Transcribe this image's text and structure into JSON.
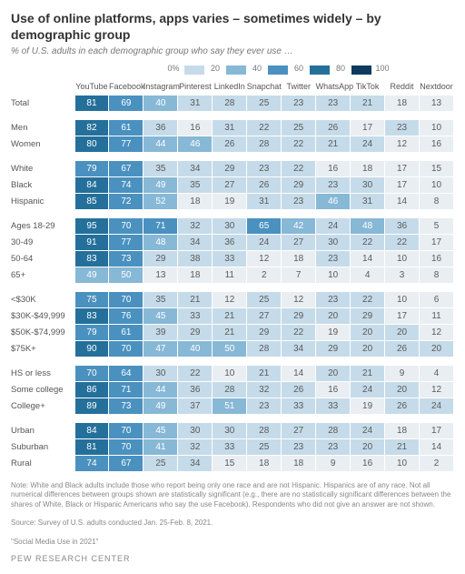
{
  "title": "Use of online platforms, apps varies – sometimes widely – by demographic group",
  "subtitle": "% of U.S. adults in each demographic group who say they ever use …",
  "legend": {
    "ticks": [
      "0%",
      "20",
      "40",
      "60",
      "80",
      "100"
    ],
    "colors": [
      "#e9eef2",
      "#c5dbe9",
      "#87b8d6",
      "#4a91c0",
      "#24709b",
      "#0f3a5f"
    ]
  },
  "color_scale": {
    "breaks": [
      0,
      20,
      40,
      60,
      80,
      101
    ],
    "colors": [
      "#e9eef2",
      "#c5dbe9",
      "#87b8d6",
      "#4a91c0",
      "#24709b",
      "#0f3a5f"
    ],
    "text_light": "#ffffff",
    "text_dark": "#5a5a5a"
  },
  "platforms": [
    "YouTube",
    "Facebook",
    "Instagram",
    "Pinterest",
    "LinkedIn",
    "Snapchat",
    "Twitter",
    "WhatsApp",
    "TikTok",
    "Reddit",
    "Nextdoor"
  ],
  "groups": [
    {
      "rows": [
        {
          "label": "Total",
          "vals": [
            81,
            69,
            40,
            31,
            28,
            25,
            23,
            23,
            21,
            18,
            13
          ]
        }
      ]
    },
    {
      "rows": [
        {
          "label": "Men",
          "vals": [
            82,
            61,
            36,
            16,
            31,
            22,
            25,
            26,
            17,
            23,
            10
          ]
        },
        {
          "label": "Women",
          "vals": [
            80,
            77,
            44,
            46,
            26,
            28,
            22,
            21,
            24,
            12,
            16
          ]
        }
      ]
    },
    {
      "rows": [
        {
          "label": "White",
          "vals": [
            79,
            67,
            35,
            34,
            29,
            23,
            22,
            16,
            18,
            17,
            15
          ]
        },
        {
          "label": "Black",
          "vals": [
            84,
            74,
            49,
            35,
            27,
            26,
            29,
            23,
            30,
            17,
            10
          ]
        },
        {
          "label": "Hispanic",
          "vals": [
            85,
            72,
            52,
            18,
            19,
            31,
            23,
            46,
            31,
            14,
            8
          ]
        }
      ]
    },
    {
      "rows": [
        {
          "label": "Ages 18-29",
          "vals": [
            95,
            70,
            71,
            32,
            30,
            65,
            42,
            24,
            48,
            36,
            5
          ]
        },
        {
          "label": "30-49",
          "vals": [
            91,
            77,
            48,
            34,
            36,
            24,
            27,
            30,
            22,
            22,
            17
          ]
        },
        {
          "label": "50-64",
          "vals": [
            83,
            73,
            29,
            38,
            33,
            12,
            18,
            23,
            14,
            10,
            16
          ]
        },
        {
          "label": "65+",
          "vals": [
            49,
            50,
            13,
            18,
            11,
            2,
            7,
            10,
            4,
            3,
            8
          ]
        }
      ]
    },
    {
      "rows": [
        {
          "label": "<$30K",
          "vals": [
            75,
            70,
            35,
            21,
            12,
            25,
            12,
            23,
            22,
            10,
            6
          ]
        },
        {
          "label": "$30K-$49,999",
          "vals": [
            83,
            76,
            45,
            33,
            21,
            27,
            29,
            20,
            29,
            17,
            11
          ]
        },
        {
          "label": "$50K-$74,999",
          "vals": [
            79,
            61,
            39,
            29,
            21,
            29,
            22,
            19,
            20,
            20,
            12
          ]
        },
        {
          "label": "$75K+",
          "vals": [
            90,
            70,
            47,
            40,
            50,
            28,
            34,
            29,
            20,
            26,
            20
          ]
        }
      ]
    },
    {
      "rows": [
        {
          "label": "HS or less",
          "vals": [
            70,
            64,
            30,
            22,
            10,
            21,
            14,
            20,
            21,
            9,
            4
          ]
        },
        {
          "label": "Some college",
          "vals": [
            86,
            71,
            44,
            36,
            28,
            32,
            26,
            16,
            24,
            20,
            12
          ]
        },
        {
          "label": "College+",
          "vals": [
            89,
            73,
            49,
            37,
            51,
            23,
            33,
            33,
            19,
            26,
            24
          ]
        }
      ]
    },
    {
      "rows": [
        {
          "label": "Urban",
          "vals": [
            84,
            70,
            45,
            30,
            30,
            28,
            27,
            28,
            24,
            18,
            17
          ]
        },
        {
          "label": "Suburban",
          "vals": [
            81,
            70,
            41,
            32,
            33,
            25,
            23,
            23,
            20,
            21,
            14
          ]
        },
        {
          "label": "Rural",
          "vals": [
            74,
            67,
            25,
            34,
            15,
            18,
            18,
            9,
            16,
            10,
            2
          ]
        }
      ]
    }
  ],
  "note": "Note: White and Black adults include those who report being only one race and are not Hispanic. Hispanics are of any race. Not all numerical differences between groups shown are statistically significant (e.g., there are no statistically significant differences between the shares of White, Black or Hispanic Americans who say the use Facebook). Respondents who did not give an answer are not shown.",
  "source": "Source: Survey of U.S. adults conducted Jan. 25-Feb. 8, 2021.",
  "ref": "\"Social Media Use in 2021\"",
  "footer": "PEW RESEARCH CENTER"
}
